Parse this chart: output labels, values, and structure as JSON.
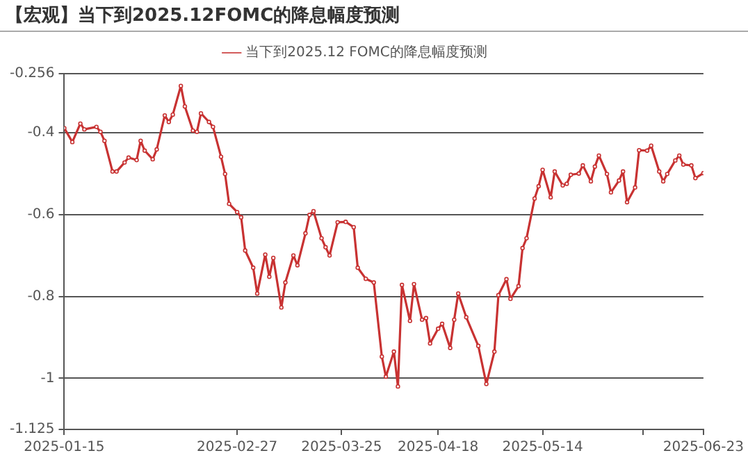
{
  "chart_data": {
    "type": "line",
    "title": "【宏观】当下到2025.12FOMC的降息幅度预测",
    "xlim": [
      "2025-01-15",
      "2025-06-23"
    ],
    "xticks": [
      "2025-01-15",
      "2025-02-27",
      "2025-03-25",
      "2025-04-18",
      "2025-05-14",
      {
        "value": "2025-06-08",
        "label": null
      },
      "2025-06-23"
    ],
    "ylim": [
      -1.125,
      -0.256
    ],
    "yticks": [
      -1.125,
      -1,
      -0.8,
      -0.6,
      -0.4,
      -0.256
    ],
    "grid": "y",
    "legend": "top",
    "marker": "circle",
    "line_style": "solid",
    "series": [
      {
        "name": "当下到2025.12 FOMC的降息幅度预测",
        "color": "#c83232",
        "x": [
          "2025-01-15",
          "2025-01-17",
          "2025-01-19",
          "2025-01-20",
          "2025-01-23",
          "2025-01-24",
          "2025-01-25",
          "2025-01-27",
          "2025-01-28",
          "2025-01-30",
          "2025-01-31",
          "2025-02-02",
          "2025-02-03",
          "2025-02-04",
          "2025-02-06",
          "2025-02-07",
          "2025-02-09",
          "2025-02-10",
          "2025-02-11",
          "2025-02-13",
          "2025-02-14",
          "2025-02-16",
          "2025-02-17",
          "2025-02-18",
          "2025-02-20",
          "2025-02-21",
          "2025-02-23",
          "2025-02-24",
          "2025-02-25",
          "2025-02-27",
          "2025-02-28",
          "2025-03-01",
          "2025-03-03",
          "2025-03-04",
          "2025-03-06",
          "2025-03-07",
          "2025-03-08",
          "2025-03-10",
          "2025-03-11",
          "2025-03-13",
          "2025-03-14",
          "2025-03-16",
          "2025-03-17",
          "2025-03-18",
          "2025-03-20",
          "2025-03-21",
          "2025-03-22",
          "2025-03-24",
          "2025-03-26",
          "2025-03-28",
          "2025-03-29",
          "2025-03-31",
          "2025-04-02",
          "2025-04-04",
          "2025-04-05",
          "2025-04-07",
          "2025-04-08",
          "2025-04-09",
          "2025-04-11",
          "2025-04-12",
          "2025-04-14",
          "2025-04-15",
          "2025-04-16",
          "2025-04-18",
          "2025-04-19",
          "2025-04-21",
          "2025-04-22",
          "2025-04-23",
          "2025-04-25",
          "2025-04-28",
          "2025-04-30",
          "2025-05-02",
          "2025-05-03",
          "2025-05-05",
          "2025-05-06",
          "2025-05-08",
          "2025-05-09",
          "2025-05-10",
          "2025-05-12",
          "2025-05-13",
          "2025-05-14",
          "2025-05-16",
          "2025-05-17",
          "2025-05-19",
          "2025-05-20",
          "2025-05-21",
          "2025-05-23",
          "2025-05-24",
          "2025-05-26",
          "2025-05-27",
          "2025-05-28",
          "2025-05-30",
          "2025-05-31",
          "2025-06-02",
          "2025-06-03",
          "2025-06-04",
          "2025-06-06",
          "2025-06-07",
          "2025-06-09",
          "2025-06-10",
          "2025-06-12",
          "2025-06-13",
          "2025-06-14",
          "2025-06-16",
          "2025-06-17",
          "2025-06-18",
          "2025-06-20",
          "2025-06-21",
          "2025-06-23"
        ],
        "values": [
          -0.389,
          -0.423,
          -0.378,
          -0.392,
          -0.386,
          -0.398,
          -0.42,
          -0.495,
          -0.495,
          -0.473,
          -0.461,
          -0.467,
          -0.42,
          -0.444,
          -0.465,
          -0.441,
          -0.358,
          -0.374,
          -0.356,
          -0.286,
          -0.336,
          -0.395,
          -0.398,
          -0.353,
          -0.374,
          -0.386,
          -0.459,
          -0.501,
          -0.574,
          -0.594,
          -0.607,
          -0.688,
          -0.73,
          -0.793,
          -0.698,
          -0.752,
          -0.706,
          -0.827,
          -0.766,
          -0.7,
          -0.724,
          -0.646,
          -0.601,
          -0.592,
          -0.658,
          -0.68,
          -0.7,
          -0.619,
          -0.618,
          -0.631,
          -0.73,
          -0.757,
          -0.766,
          -0.947,
          -0.996,
          -0.935,
          -1.02,
          -0.772,
          -0.86,
          -0.77,
          -0.857,
          -0.853,
          -0.915,
          -0.879,
          -0.867,
          -0.926,
          -0.857,
          -0.793,
          -0.851,
          -0.921,
          -1.014,
          -0.935,
          -0.797,
          -0.758,
          -0.806,
          -0.775,
          -0.682,
          -0.658,
          -0.561,
          -0.531,
          -0.491,
          -0.558,
          -0.495,
          -0.529,
          -0.525,
          -0.503,
          -0.5,
          -0.48,
          -0.519,
          -0.483,
          -0.456,
          -0.501,
          -0.546,
          -0.517,
          -0.495,
          -0.57,
          -0.534,
          -0.443,
          -0.444,
          -0.432,
          -0.495,
          -0.519,
          -0.501,
          -0.468,
          -0.456,
          -0.478,
          -0.48,
          -0.511,
          -0.499
        ]
      }
    ]
  }
}
